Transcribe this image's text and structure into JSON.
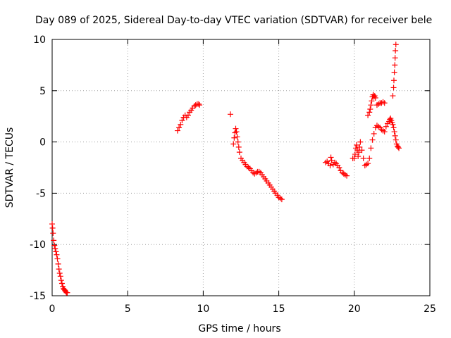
{
  "chart_data": {
    "type": "scatter",
    "title": "Day 089 of 2025, Sidereal Day-to-day VTEC variation (SDTVAR) for receiver bele",
    "xlabel": "GPS time / hours",
    "ylabel": "SDTVAR / TECUs",
    "xlim": [
      0,
      25
    ],
    "ylim": [
      -15,
      10
    ],
    "xticks": [
      0,
      5,
      10,
      15,
      20,
      25
    ],
    "yticks": [
      -15,
      -10,
      -5,
      0,
      5,
      10
    ],
    "grid": true,
    "marker": "+",
    "marker_color": "#ff0000",
    "series": [
      {
        "name": "SDTVAR",
        "x": [
          0.0,
          0.03,
          0.06,
          0.1,
          0.15,
          0.2,
          0.25,
          0.3,
          0.35,
          0.4,
          0.45,
          0.5,
          0.55,
          0.6,
          0.65,
          0.7,
          0.75,
          0.8,
          0.85,
          0.9,
          0.95,
          1.0,
          8.3,
          8.4,
          8.5,
          8.6,
          8.7,
          8.8,
          8.9,
          9.0,
          9.1,
          9.2,
          9.3,
          9.4,
          9.5,
          9.6,
          9.7,
          9.75,
          11.8,
          12.0,
          12.05,
          12.1,
          12.15,
          12.2,
          12.25,
          12.3,
          12.35,
          12.4,
          12.5,
          12.6,
          12.7,
          12.8,
          12.9,
          13.0,
          13.1,
          13.2,
          13.3,
          13.4,
          13.5,
          13.6,
          13.7,
          13.8,
          13.9,
          14.0,
          14.1,
          14.2,
          14.3,
          14.4,
          14.5,
          14.6,
          14.7,
          14.8,
          14.9,
          15.0,
          15.1,
          15.2,
          18.1,
          18.2,
          18.3,
          18.4,
          18.45,
          18.5,
          18.6,
          18.7,
          18.8,
          18.9,
          19.0,
          19.1,
          19.2,
          19.3,
          19.4,
          19.5,
          19.9,
          20.0,
          20.05,
          20.1,
          20.15,
          20.2,
          20.25,
          20.3,
          20.35,
          20.4,
          20.5,
          20.6,
          20.7,
          20.8,
          20.9,
          21.0,
          21.1,
          21.2,
          21.3,
          21.4,
          21.5,
          21.6,
          21.7,
          21.8,
          21.9,
          22.0,
          20.9,
          21.0,
          21.05,
          21.1,
          21.15,
          21.2,
          21.25,
          21.3,
          21.35,
          21.4,
          21.5,
          21.6,
          21.7,
          21.8,
          21.9,
          22.0,
          22.1,
          22.2,
          22.3,
          22.35,
          22.4,
          22.45,
          22.5,
          22.55,
          22.6,
          22.65,
          22.7,
          22.75,
          22.8,
          22.85,
          22.9,
          22.95,
          22.55,
          22.6,
          22.62,
          22.65,
          22.68,
          22.7,
          22.72,
          22.75
        ],
        "y": [
          -8.0,
          -8.4,
          -8.9,
          -9.6,
          -10.1,
          -10.4,
          -10.7,
          -11.0,
          -11.4,
          -11.9,
          -12.4,
          -12.8,
          -13.1,
          -13.5,
          -13.8,
          -14.1,
          -14.3,
          -14.4,
          -14.5,
          -14.6,
          -14.7,
          -14.7,
          1.1,
          1.4,
          1.7,
          2.1,
          2.4,
          2.6,
          2.4,
          2.6,
          2.9,
          3.1,
          3.3,
          3.5,
          3.6,
          3.7,
          3.7,
          3.6,
          2.7,
          -0.2,
          0.4,
          0.9,
          1.3,
          1.0,
          0.5,
          0.0,
          -0.5,
          -1.0,
          -1.6,
          -1.8,
          -2.0,
          -2.2,
          -2.4,
          -2.5,
          -2.6,
          -2.8,
          -3.0,
          -3.1,
          -3.0,
          -2.9,
          -2.9,
          -3.0,
          -3.2,
          -3.4,
          -3.6,
          -3.8,
          -4.0,
          -4.2,
          -4.4,
          -4.6,
          -4.8,
          -5.0,
          -5.2,
          -5.4,
          -5.5,
          -5.6,
          -2.0,
          -1.9,
          -2.1,
          -2.3,
          -1.5,
          -1.8,
          -2.2,
          -2.0,
          -2.1,
          -2.3,
          -2.5,
          -2.8,
          -3.0,
          -3.1,
          -3.2,
          -3.3,
          -1.6,
          -1.6,
          -1.2,
          -0.6,
          -0.3,
          -0.8,
          -1.4,
          -1.0,
          -0.5,
          0.0,
          -0.8,
          -1.6,
          -2.3,
          -2.2,
          -2.1,
          -1.6,
          -0.6,
          0.2,
          0.8,
          1.4,
          1.6,
          1.5,
          1.4,
          1.2,
          1.1,
          1.0,
          2.6,
          2.9,
          3.2,
          3.6,
          4.0,
          4.4,
          4.6,
          4.4,
          4.5,
          4.3,
          3.6,
          3.7,
          3.8,
          3.8,
          3.9,
          3.8,
          1.5,
          1.8,
          2.0,
          2.2,
          2.3,
          2.1,
          1.9,
          1.7,
          1.4,
          1.0,
          0.6,
          0.2,
          -0.2,
          -0.4,
          -0.5,
          -0.6,
          4.5,
          5.3,
          6.0,
          6.8,
          7.5,
          8.2,
          8.9,
          9.5
        ]
      }
    ]
  }
}
